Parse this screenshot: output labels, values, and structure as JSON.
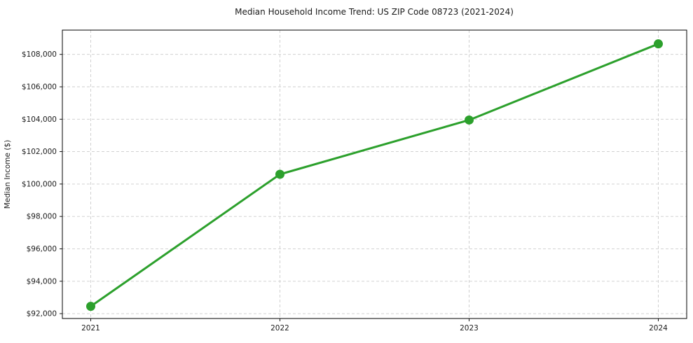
{
  "figure": {
    "background": "#ffffff"
  },
  "chart_data": {
    "type": "line",
    "title": "Median Household Income Trend: US ZIP Code 08723 (2021-2024)",
    "xlabel": "",
    "ylabel": "Median Income ($)",
    "x": [
      2021,
      2022,
      2023,
      2024
    ],
    "series": [
      {
        "name": "Median Household Income",
        "values": [
          92450,
          100600,
          103950,
          108650
        ]
      }
    ],
    "xticks": [
      2021,
      2022,
      2023,
      2024
    ],
    "xtick_labels": [
      "2021",
      "2022",
      "2023",
      "2024"
    ],
    "yticks": [
      92000,
      94000,
      96000,
      98000,
      100000,
      102000,
      104000,
      106000,
      108000
    ],
    "ytick_labels": [
      "$92,000",
      "$94,000",
      "$96,000",
      "$98,000",
      "$100,000",
      "$102,000",
      "$104,000",
      "$106,000",
      "$108,000"
    ],
    "xlim": [
      2020.85,
      2024.15
    ],
    "ylim": [
      91700,
      109500
    ],
    "grid": true,
    "grid_style": "dashed",
    "legend_position": "none",
    "line_width": 3,
    "marker_style": "circle",
    "marker_radius": 6.5,
    "colors": {
      "line": "#2ca02c",
      "marker": "#2ca02c",
      "grid": "#cccccc",
      "spine": "#000000",
      "text": "#1a1a1a",
      "background": "#ffffff"
    }
  }
}
